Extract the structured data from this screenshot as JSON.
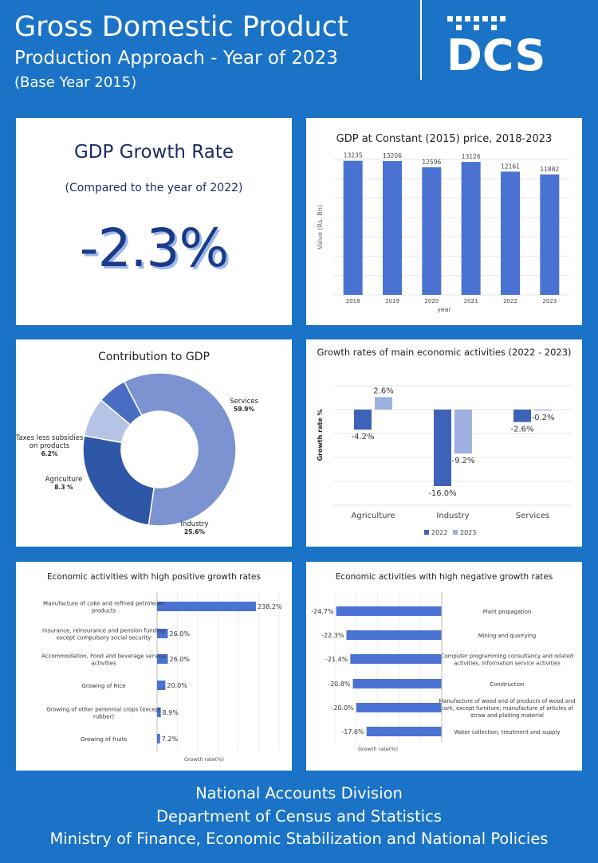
{
  "header": {
    "title": "Gross Domestic Product",
    "subtitle": "Production Approach - Year of 2023",
    "base_year": "(Base Year 2015)",
    "logo_text": "DCS"
  },
  "growth_panel": {
    "title": "GDP Growth Rate",
    "subtitle": "(Compared to the year of 2022)",
    "value": "-2.3%"
  },
  "footer": {
    "line1": "National Accounts Division",
    "line2": "Department of Census and Statistics",
    "line3": "Ministry of Finance, Economic Stabilization and National Policies"
  },
  "colors": {
    "background": "#1a73c6",
    "bar": "#4a6fd0",
    "dark": "#2f57a8",
    "light": "#8ea8dc",
    "text": "#1b2a66"
  },
  "chart_data": [
    {
      "id": "gdp_constant",
      "type": "bar",
      "title": "GDP at Constant (2015) price, 2018-2023",
      "xlabel": "year",
      "ylabel": "Value (Rs. Bn)",
      "categories": [
        "2018",
        "2019",
        "2020",
        "2021",
        "2022",
        "2023"
      ],
      "values": [
        13235,
        13206,
        12596,
        13126,
        12161,
        11882
      ],
      "value_labels": [
        "13235",
        "13206",
        "12596",
        "13126",
        "12161",
        "11882"
      ],
      "ylim": [
        0,
        14000
      ]
    },
    {
      "id": "contribution",
      "type": "pie",
      "title": "Contribution to GDP",
      "slices": [
        {
          "name": "Services",
          "value": 59.9,
          "label": "59.9%",
          "color": "#7b93d0"
        },
        {
          "name": "Industry",
          "value": 25.6,
          "label": "25.6%",
          "color": "#2f57a8"
        },
        {
          "name": "Agriculture",
          "value": 8.3,
          "label": "8.3 %",
          "color": "#b5c4e6"
        },
        {
          "name_lines": [
            "Taxes less subsidies",
            "on products"
          ],
          "name": "Taxes less subsidies on products",
          "value": 6.2,
          "label": "6.2%",
          "color": "#4a6dc4"
        }
      ]
    },
    {
      "id": "growth_main",
      "type": "bar",
      "title": "Growth rates of main economic activities (2022 - 2023)",
      "ylabel": "Growth rate %",
      "categories": [
        "Agriculture",
        "Industry",
        "Services"
      ],
      "series": [
        {
          "name": "2022",
          "values": [
            -4.2,
            -16.0,
            -2.6
          ],
          "labels": [
            "-4.2%",
            "-16.0%",
            "-2.6%"
          ],
          "color": "#3e62b8"
        },
        {
          "name": "2023",
          "values": [
            2.6,
            -9.2,
            -0.2
          ],
          "labels": [
            "2.6%",
            "-9.2%",
            "-0.2%"
          ],
          "color": "#9db0e0"
        }
      ],
      "ylim": [
        -18,
        4
      ]
    },
    {
      "id": "positive",
      "type": "bar",
      "orientation": "horizontal",
      "title": "Economic activities with high positive growth rates",
      "xlabel": "Growth rate(%)",
      "categories": [
        [
          "Manufacture of coke and refined petroleum",
          "products"
        ],
        [
          "Insurance, reinsurance and pension funding",
          "except compulsory social security"
        ],
        [
          "Accommodation, Food and beverage service",
          "activities"
        ],
        [
          "Growing of Rice"
        ],
        [
          "Growing of other perennial crops (except",
          "rubber)"
        ],
        [
          "Growing of fruits"
        ]
      ],
      "values": [
        238.2,
        26.0,
        26.0,
        20.0,
        8.9,
        7.2
      ],
      "value_labels": [
        "238.2%",
        "26.0%",
        "26.0%",
        "20.0%",
        "8.9%",
        "7.2%"
      ],
      "xlim": [
        0,
        240
      ]
    },
    {
      "id": "negative",
      "type": "bar",
      "orientation": "horizontal",
      "title": "Economic activities with high negative growth rates",
      "xlabel": "Growth rate(%)",
      "categories": [
        [
          "Plant propagation"
        ],
        [
          "Mining and quarrying"
        ],
        [
          "Computer programming consultancy and related",
          "activities, Information service activities"
        ],
        [
          "Construction"
        ],
        [
          "Manufacture of wood and of products of wood and",
          "cork, except furniture; manufacture of articles of",
          "straw and plaiting material"
        ],
        [
          "Water collection, treatment and supply"
        ]
      ],
      "values": [
        -24.7,
        -22.3,
        -21.4,
        -20.8,
        -20.0,
        -17.6
      ],
      "value_labels": [
        "-24.7%",
        "-22.3%",
        "-21.4%",
        "-20.8%",
        "-20.0%",
        "-17.6%"
      ],
      "xlim": [
        -25,
        0
      ]
    }
  ]
}
